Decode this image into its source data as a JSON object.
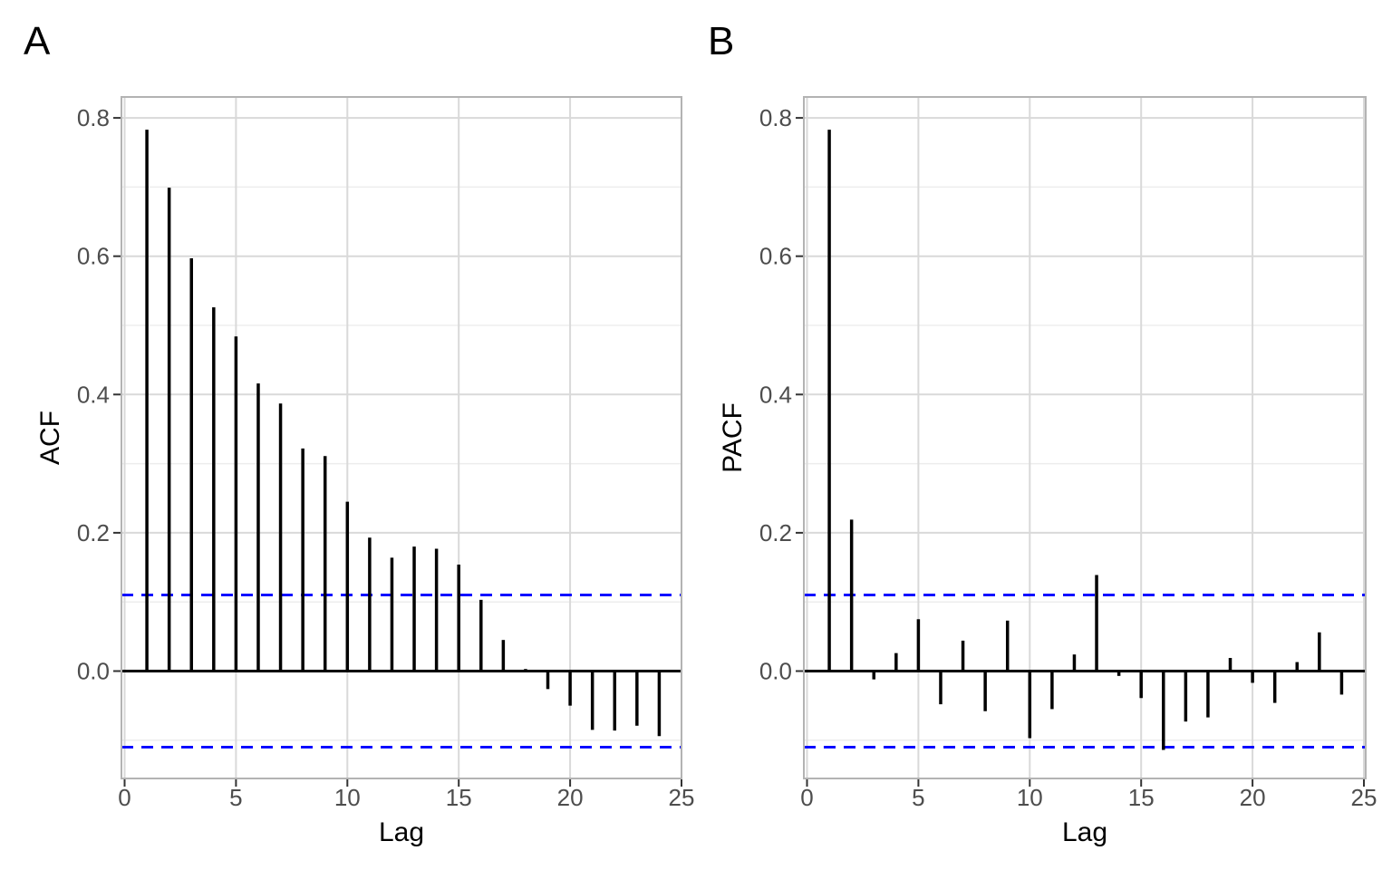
{
  "figure": {
    "panel_tags": [
      "A",
      "B"
    ],
    "xlabel": "Lag",
    "ylabels": [
      "ACF",
      "PACF"
    ]
  },
  "style": {
    "background": "#ffffff",
    "panel_background": "#ffffff",
    "panel_border": "#b3b3b3",
    "grid_major": "#d9d9d9",
    "grid_minor": "#ededed",
    "bar_color": "#000000",
    "zero_line_color": "#000000",
    "conf_line_color": "#0000ff",
    "tick_mark_color": "#333333",
    "tick_text_color": "#4d4d4d",
    "title_text_color": "#000000"
  },
  "chart_data": [
    {
      "type": "bar",
      "subtype": "stem-lollipop-acf",
      "title": "A",
      "xlabel": "Lag",
      "ylabel": "ACF",
      "x": [
        1,
        2,
        3,
        4,
        5,
        6,
        7,
        8,
        9,
        10,
        11,
        12,
        13,
        14,
        15,
        16,
        17,
        18,
        19,
        20,
        21,
        22,
        23,
        24
      ],
      "values": [
        0.783,
        0.699,
        0.597,
        0.526,
        0.484,
        0.416,
        0.387,
        0.322,
        0.311,
        0.245,
        0.193,
        0.164,
        0.18,
        0.177,
        0.154,
        0.103,
        0.045,
        0.003,
        -0.026,
        -0.05,
        -0.085,
        -0.086,
        -0.079,
        -0.094
      ],
      "conf_bounds": [
        -0.11,
        0.11
      ],
      "conf_line_style": "dashed-blue",
      "x_ticks": [
        0,
        5,
        10,
        15,
        20,
        25
      ],
      "x_tick_labels": [
        "0",
        "5",
        "10",
        "15",
        "20",
        "25"
      ],
      "y_ticks": [
        0.0,
        0.2,
        0.4,
        0.6,
        0.8
      ],
      "y_tick_labels": [
        "0.0",
        "0.2",
        "0.4",
        "0.6",
        "0.8"
      ],
      "y_minor_ticks": [
        0.7,
        0.5,
        0.3,
        0.1,
        -0.1
      ],
      "xlim": [
        0,
        25
      ],
      "ylim": [
        -0.155,
        0.83
      ],
      "grid": "major-xy-plus-minor-y",
      "legend": "none"
    },
    {
      "type": "bar",
      "subtype": "stem-lollipop-pacf",
      "title": "B",
      "xlabel": "Lag",
      "ylabel": "PACF",
      "x": [
        1,
        2,
        3,
        4,
        5,
        6,
        7,
        8,
        9,
        10,
        11,
        12,
        13,
        14,
        15,
        16,
        17,
        18,
        19,
        20,
        21,
        22,
        23,
        24
      ],
      "values": [
        0.783,
        0.219,
        -0.012,
        0.026,
        0.075,
        -0.048,
        0.044,
        -0.058,
        0.073,
        -0.097,
        -0.055,
        0.024,
        0.139,
        -0.007,
        -0.039,
        -0.114,
        -0.073,
        -0.067,
        0.019,
        -0.017,
        -0.046,
        0.013,
        0.056,
        -0.034
      ],
      "conf_bounds": [
        -0.11,
        0.11
      ],
      "conf_line_style": "dashed-blue",
      "x_ticks": [
        0,
        5,
        10,
        15,
        20,
        25
      ],
      "x_tick_labels": [
        "0",
        "5",
        "10",
        "15",
        "20",
        "25"
      ],
      "y_ticks": [
        0.0,
        0.2,
        0.4,
        0.6,
        0.8
      ],
      "y_tick_labels": [
        "0.0",
        "0.2",
        "0.4",
        "0.6",
        "0.8"
      ],
      "y_minor_ticks": [
        0.7,
        0.5,
        0.3,
        0.1,
        -0.1
      ],
      "xlim": [
        0,
        25
      ],
      "ylim": [
        -0.155,
        0.83
      ],
      "grid": "major-xy-plus-minor-y",
      "legend": "none"
    }
  ]
}
